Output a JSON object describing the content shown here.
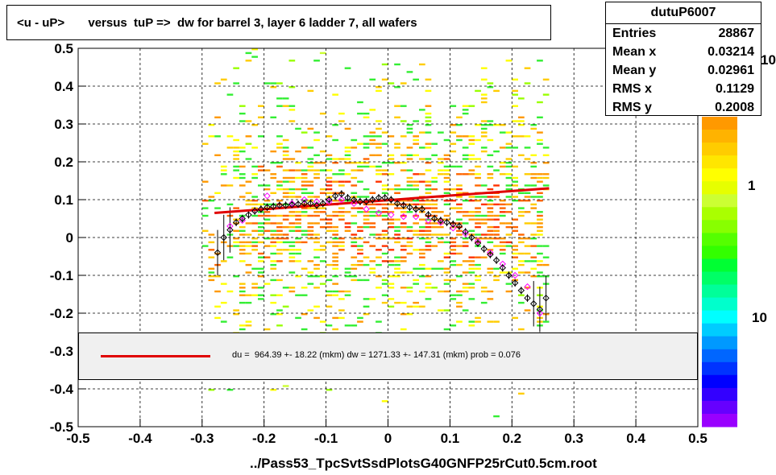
{
  "title": "<u - uP>       versus  tuP =>  dw for barrel 3, layer 6 ladder 7, all wafers",
  "stats": {
    "name": "dutuP6007",
    "rows": [
      {
        "label": "Entries",
        "value": "28867"
      },
      {
        "label": "Mean x",
        "value": "0.03214"
      },
      {
        "label": "Mean y",
        "value": "0.02961"
      },
      {
        "label": "RMS x",
        "value": "0.1129"
      },
      {
        "label": "RMS y",
        "value": "0.2008"
      }
    ]
  },
  "x_title": "../Pass53_TpcSvtSsdPlotsG40GNFP25rCut0.5cm.root",
  "legend_text": "du =  964.39 +- 18.22 (mkm) dw = 1271.33 +- 147.31 (mkm) prob = 0.076",
  "colorbar": {
    "labels": [
      "1",
      "10"
    ],
    "top_label": "10"
  },
  "colors": {
    "fit": "#e00000",
    "black_points": "#000000",
    "pink_points": "#ff00ff"
  },
  "chart_data": {
    "type": "heatmap",
    "xlim": [
      -0.5,
      0.5
    ],
    "ylim": [
      -0.5,
      0.5
    ],
    "x_ticks": [
      "-0.5",
      "-0.4",
      "-0.3",
      "-0.2",
      "-0.1",
      "0",
      "0.1",
      "0.2",
      "0.3",
      "0.4",
      "0.5"
    ],
    "y_ticks": [
      "-0.5",
      "-0.4",
      "-0.3",
      "-0.2",
      "-0.1",
      "0",
      "0.1",
      "0.2",
      "0.3",
      "0.4",
      "0.5"
    ],
    "grid": true,
    "fit_line": {
      "x": [
        -0.28,
        0.26
      ],
      "y": [
        0.065,
        0.13
      ]
    },
    "profile_black": {
      "x": [
        -0.275,
        -0.265,
        -0.255,
        -0.245,
        -0.235,
        -0.225,
        -0.215,
        -0.205,
        -0.195,
        -0.185,
        -0.175,
        -0.165,
        -0.155,
        -0.145,
        -0.135,
        -0.125,
        -0.115,
        -0.105,
        -0.095,
        -0.085,
        -0.075,
        -0.065,
        -0.055,
        -0.045,
        -0.035,
        -0.025,
        -0.015,
        -0.005,
        0.005,
        0.015,
        0.025,
        0.035,
        0.045,
        0.055,
        0.065,
        0.075,
        0.085,
        0.095,
        0.105,
        0.115,
        0.125,
        0.135,
        0.145,
        0.155,
        0.165,
        0.175,
        0.185,
        0.195,
        0.205,
        0.215,
        0.225,
        0.235,
        0.245,
        0.255
      ],
      "y": [
        -0.04,
        0.0,
        0.02,
        0.04,
        0.05,
        0.06,
        0.07,
        0.075,
        0.08,
        0.082,
        0.085,
        0.085,
        0.087,
        0.088,
        0.09,
        0.09,
        0.085,
        0.09,
        0.1,
        0.11,
        0.115,
        0.105,
        0.1,
        0.095,
        0.095,
        0.1,
        0.105,
        0.105,
        0.1,
        0.09,
        0.085,
        0.08,
        0.075,
        0.075,
        0.06,
        0.05,
        0.045,
        0.04,
        0.035,
        0.03,
        0.015,
        0.0,
        -0.015,
        -0.03,
        -0.045,
        -0.06,
        -0.08,
        -0.1,
        -0.12,
        -0.14,
        -0.16,
        -0.175,
        -0.19,
        -0.16
      ]
    },
    "profile_pink": {
      "x": [
        -0.255,
        -0.235,
        -0.215,
        -0.195,
        -0.175,
        -0.155,
        -0.135,
        -0.115,
        -0.095,
        -0.075,
        -0.055,
        -0.035,
        -0.015,
        0.005,
        0.025,
        0.045,
        0.065,
        0.085,
        0.105,
        0.125,
        0.145,
        0.165,
        0.185,
        0.205,
        0.225,
        0.245
      ],
      "y": [
        0.03,
        0.045,
        0.07,
        0.11,
        0.085,
        0.09,
        0.1,
        0.095,
        0.095,
        0.1,
        0.09,
        0.075,
        0.065,
        0.06,
        0.055,
        0.055,
        0.045,
        0.04,
        0.025,
        0.01,
        -0.01,
        -0.04,
        -0.07,
        -0.1,
        -0.13,
        -0.2
      ]
    }
  }
}
